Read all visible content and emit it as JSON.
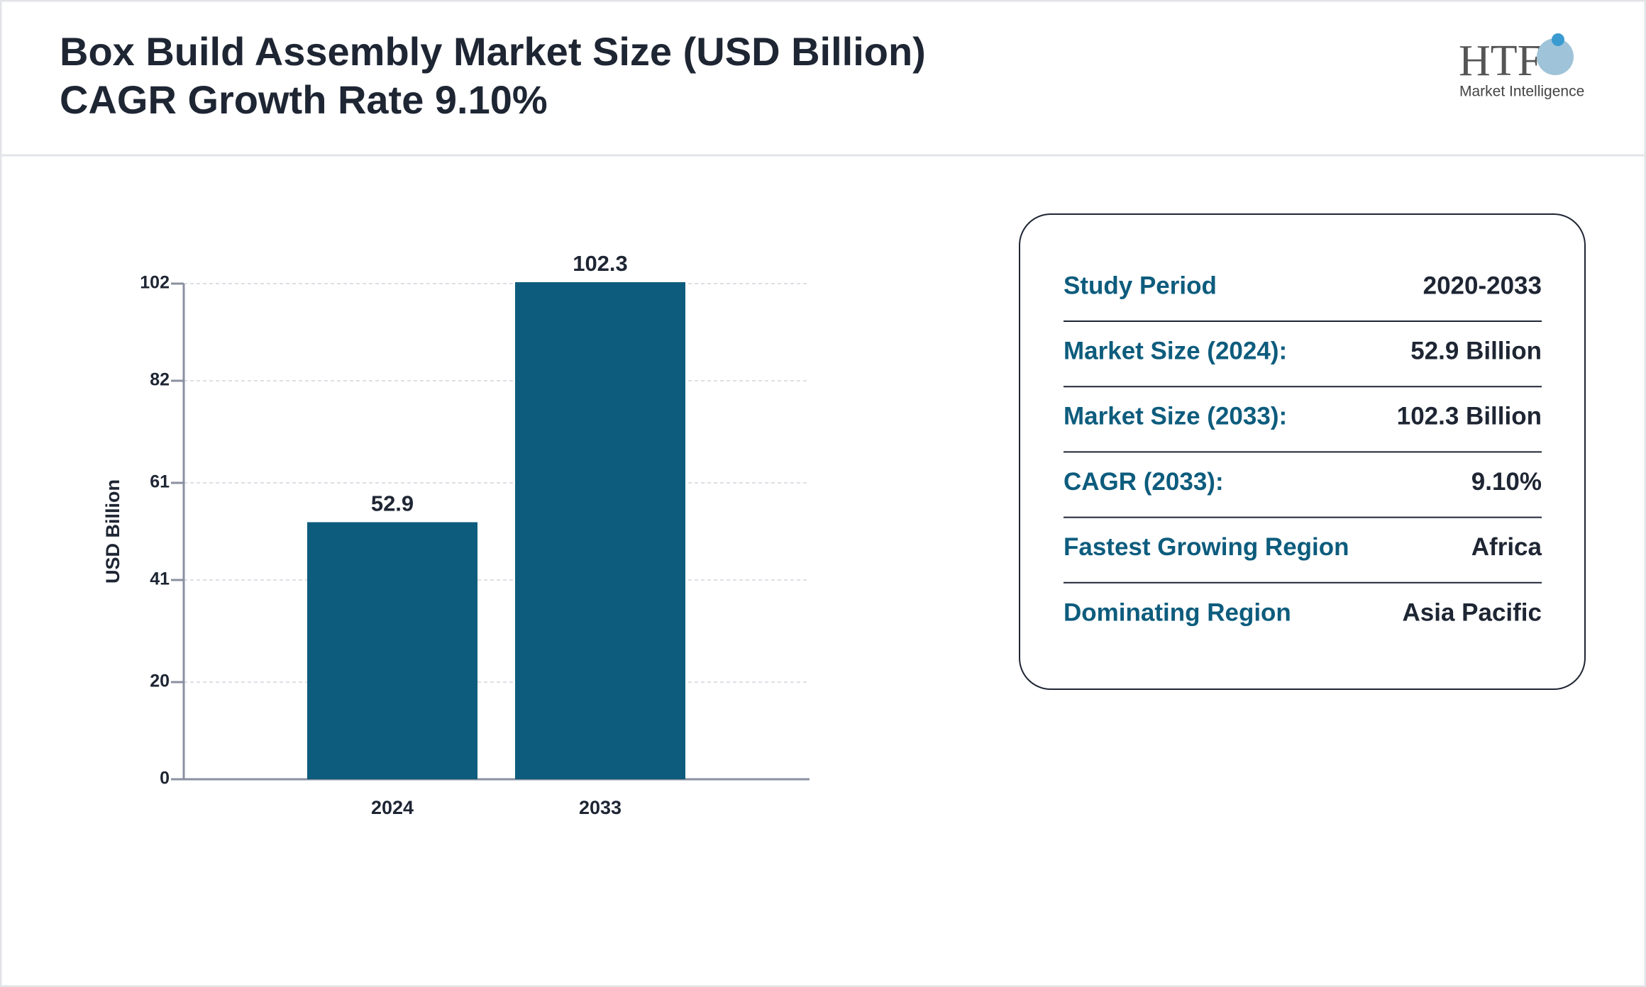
{
  "header": {
    "title": "Box Build Assembly Market Size (USD Billion)",
    "subtitle": "CAGR Growth Rate 9.10%",
    "logo": "HTF",
    "logo_tagline": "Market Intelligence"
  },
  "chart_data": {
    "type": "bar",
    "y_label": "USD Billion",
    "categories": [
      "2024",
      "2033"
    ],
    "values": [
      52.9,
      102.3
    ],
    "color": "#0d5c7d",
    "ylim": [
      0,
      102
    ],
    "yticks": [
      0,
      20,
      41,
      61,
      82,
      102
    ],
    "grid": true
  },
  "info": {
    "rows": [
      [
        "Study Period",
        "2020-2033"
      ],
      [
        "Market Size (2024):",
        "52.9 Billion"
      ],
      [
        "Market Size (2033):",
        "102.3 Billion"
      ],
      [
        "CAGR (2033):",
        "9.10%"
      ],
      [
        "Fastest Growing Region",
        "Africa"
      ],
      [
        "Dominating Region",
        "Asia Pacific"
      ]
    ]
  }
}
